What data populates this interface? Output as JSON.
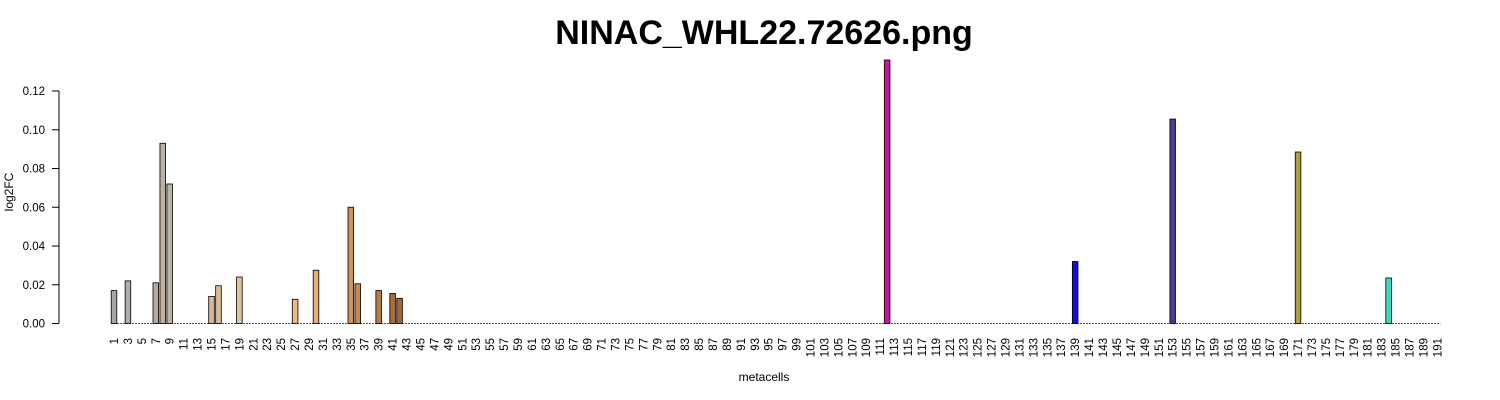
{
  "chart_data": {
    "type": "bar",
    "title": "NINAC_WHL22.72626.png",
    "xlabel": "metacells",
    "ylabel": "log2FC",
    "ylim": [
      0,
      0.136
    ],
    "yticks": [
      "0.00",
      "0.02",
      "0.04",
      "0.06",
      "0.08",
      "0.10",
      "0.12"
    ],
    "ytick_values": [
      0,
      0.02,
      0.04,
      0.06,
      0.08,
      0.1,
      0.12
    ],
    "n_categories": 191,
    "xtick_every": 2,
    "grid": false,
    "legend": "none",
    "bars": [
      {
        "x": 1,
        "value": 0.017,
        "color": "#a8a8a8"
      },
      {
        "x": 3,
        "value": 0.022,
        "color": "#b0aca6"
      },
      {
        "x": 7,
        "value": 0.021,
        "color": "#b4aa9e"
      },
      {
        "x": 8,
        "value": 0.093,
        "color": "#bcb0a0"
      },
      {
        "x": 9,
        "value": 0.072,
        "color": "#c0b2a0"
      },
      {
        "x": 15,
        "value": 0.014,
        "color": "#d6b898"
      },
      {
        "x": 16,
        "value": 0.0195,
        "color": "#dcbc98"
      },
      {
        "x": 19,
        "value": 0.024,
        "color": "#e4c49a"
      },
      {
        "x": 27,
        "value": 0.0125,
        "color": "#ecbc86"
      },
      {
        "x": 30,
        "value": 0.0275,
        "color": "#e2b07c"
      },
      {
        "x": 35,
        "value": 0.06,
        "color": "#cc9260"
      },
      {
        "x": 36,
        "value": 0.0205,
        "color": "#c48a58"
      },
      {
        "x": 39,
        "value": 0.017,
        "color": "#b47a48"
      },
      {
        "x": 41,
        "value": 0.0155,
        "color": "#a86c3c"
      },
      {
        "x": 42,
        "value": 0.013,
        "color": "#a06838"
      },
      {
        "x": 112,
        "value": 0.136,
        "color": "#c418a0"
      },
      {
        "x": 139,
        "value": 0.032,
        "color": "#1010e0"
      },
      {
        "x": 153,
        "value": 0.1055,
        "color": "#4c3c8c"
      },
      {
        "x": 171,
        "value": 0.0885,
        "color": "#aca038"
      },
      {
        "x": 184,
        "value": 0.0235,
        "color": "#40d8b8"
      }
    ]
  }
}
